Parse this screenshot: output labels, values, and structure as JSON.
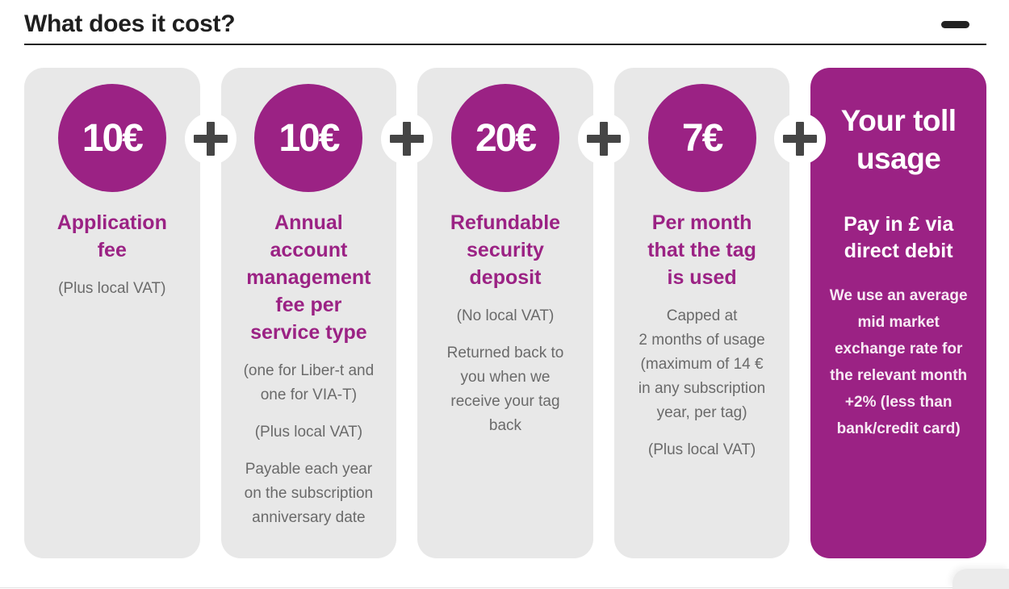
{
  "header": {
    "title": "What does it cost?",
    "collapse_icon": "minus"
  },
  "colors": {
    "accent_magenta": "#9b2284",
    "card_gray": "#e8e8e8",
    "body_text_gray": "#6a6a6a",
    "heading_dark": "#1f1f1f",
    "plus_dark": "#454545"
  },
  "icons": {
    "plus_separator": "plus-icon",
    "collapse": "minus-icon"
  },
  "cards": [
    {
      "badge": "10€",
      "title": "Application\nfee",
      "paragraphs": [
        "(Plus local VAT)"
      ]
    },
    {
      "badge": "10€",
      "title": "Annual\naccount\nmanagement\nfee per\nservice type",
      "paragraphs": [
        "(one for Liber-t and\none for VIA-T)",
        "(Plus local VAT)",
        "Payable each year\non the subscription\nanniversary date"
      ]
    },
    {
      "badge": "20€",
      "title": "Refundable\nsecurity\ndeposit",
      "paragraphs": [
        "(No local VAT)",
        "Returned back to\nyou when we\nreceive your tag\nback"
      ]
    },
    {
      "badge": "7€",
      "title": "Per month\nthat the tag\nis used",
      "paragraphs": [
        "Capped at\n2 months of usage\n(maximum of 14 €\nin any subscription\nyear, per tag)",
        "(Plus local VAT)"
      ]
    },
    {
      "highlight": true,
      "title": "Your toll\nusage",
      "subtitle": "Pay in £ via\ndirect debit",
      "paragraphs": [
        "We use an average\nmid market\nexchange rate for\nthe relevant month\n+2% (less than\nbank/credit card)"
      ]
    }
  ]
}
